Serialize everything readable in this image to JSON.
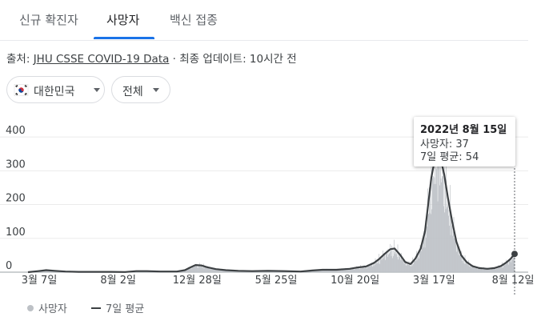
{
  "tabs": [
    {
      "label": "신규 확진자"
    },
    {
      "label": "사망자"
    },
    {
      "label": "백신 접종"
    }
  ],
  "source": {
    "prefix": "출처: ",
    "link": "JHU CSSE COVID-19 Data",
    "updated": " · 최종 업데이트: 10시간 전"
  },
  "filters": {
    "region": "대한민국",
    "scope": "전체"
  },
  "icons": {
    "flag": "south-korea-flag-icon",
    "caret": "caret-down-icon"
  },
  "colors": {
    "bars": "#bdc1c6",
    "average_line": "#3c4043",
    "active_tab": "#1a73e8"
  },
  "tooltip": {
    "date": "2022년 8월 15일",
    "deaths": "사망자: 37",
    "avg": "7일 평균: 54"
  },
  "legend": {
    "deaths": "사망자",
    "avg": "7일 평균"
  },
  "chart_data": {
    "type": "bar",
    "y_ticks": [
      "0",
      "100",
      "200",
      "300",
      "400"
    ],
    "ylim": [
      0,
      450
    ],
    "x_ticks": [
      {
        "label": "3월 7일",
        "date": "2020-03-07"
      },
      {
        "label": "8월 2일",
        "date": "2020-08-02"
      },
      {
        "label": "12월 28일",
        "date": "2020-12-28"
      },
      {
        "label": "5월 25일",
        "date": "2021-05-25"
      },
      {
        "label": "10월 20일",
        "date": "2021-10-20"
      },
      {
        "label": "3월 17일",
        "date": "2022-03-17"
      },
      {
        "label": "8월 12일",
        "date": "2022-08-12"
      }
    ],
    "x_range": [
      "2020-02-15",
      "2022-08-15"
    ],
    "grid": true,
    "legend_position": "bottom-left",
    "series": [
      {
        "name": "사망자",
        "kind": "bars"
      },
      {
        "name": "7일 평균",
        "kind": "line"
      }
    ],
    "avg_points": [
      [
        "2020-02-15",
        0
      ],
      [
        "2020-03-05",
        3
      ],
      [
        "2020-03-20",
        6
      ],
      [
        "2020-04-05",
        4
      ],
      [
        "2020-04-25",
        2
      ],
      [
        "2020-05-20",
        1
      ],
      [
        "2020-06-20",
        1
      ],
      [
        "2020-07-20",
        1
      ],
      [
        "2020-08-15",
        0.5
      ],
      [
        "2020-09-05",
        3
      ],
      [
        "2020-09-25",
        3
      ],
      [
        "2020-10-20",
        2
      ],
      [
        "2020-11-20",
        2
      ],
      [
        "2020-12-05",
        6
      ],
      [
        "2020-12-15",
        14
      ],
      [
        "2020-12-25",
        21
      ],
      [
        "2021-01-05",
        20
      ],
      [
        "2021-01-15",
        15
      ],
      [
        "2021-02-01",
        9
      ],
      [
        "2021-02-20",
        6
      ],
      [
        "2021-03-15",
        4
      ],
      [
        "2021-04-10",
        3
      ],
      [
        "2021-05-10",
        4
      ],
      [
        "2021-06-10",
        3
      ],
      [
        "2021-07-10",
        2
      ],
      [
        "2021-08-01",
        5
      ],
      [
        "2021-08-20",
        7
      ],
      [
        "2021-09-15",
        7
      ],
      [
        "2021-10-10",
        10
      ],
      [
        "2021-10-25",
        14
      ],
      [
        "2021-11-10",
        17
      ],
      [
        "2021-11-25",
        28
      ],
      [
        "2021-12-05",
        40
      ],
      [
        "2021-12-15",
        55
      ],
      [
        "2021-12-25",
        68
      ],
      [
        "2022-01-02",
        70
      ],
      [
        "2022-01-12",
        52
      ],
      [
        "2022-01-22",
        30
      ],
      [
        "2022-02-01",
        24
      ],
      [
        "2022-02-10",
        40
      ],
      [
        "2022-02-20",
        70
      ],
      [
        "2022-02-28",
        120
      ],
      [
        "2022-03-06",
        200
      ],
      [
        "2022-03-12",
        280
      ],
      [
        "2022-03-18",
        330
      ],
      [
        "2022-03-24",
        345
      ],
      [
        "2022-03-30",
        330
      ],
      [
        "2022-04-05",
        290
      ],
      [
        "2022-04-12",
        220
      ],
      [
        "2022-04-20",
        150
      ],
      [
        "2022-04-28",
        90
      ],
      [
        "2022-05-07",
        50
      ],
      [
        "2022-05-17",
        30
      ],
      [
        "2022-05-28",
        18
      ],
      [
        "2022-06-10",
        12
      ],
      [
        "2022-06-25",
        10
      ],
      [
        "2022-07-08",
        12
      ],
      [
        "2022-07-20",
        18
      ],
      [
        "2022-07-30",
        28
      ],
      [
        "2022-08-08",
        40
      ],
      [
        "2022-08-15",
        54
      ]
    ],
    "selected": {
      "date": "2022-08-15",
      "deaths": 37,
      "avg": 54
    }
  }
}
